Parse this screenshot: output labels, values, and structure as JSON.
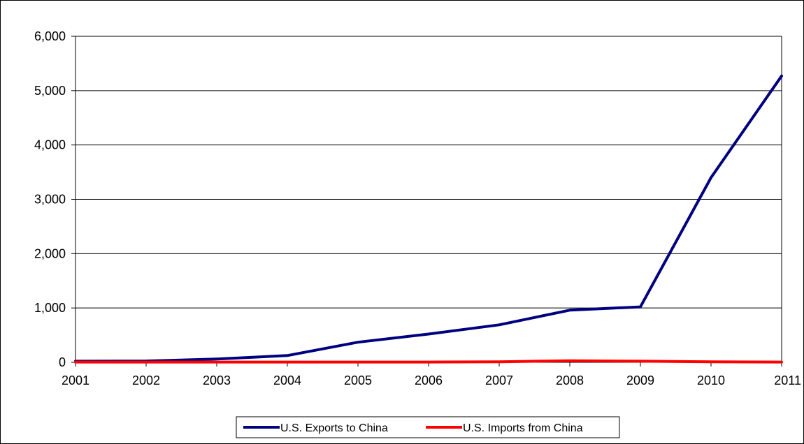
{
  "chart_data": {
    "type": "line",
    "title": "",
    "xlabel": "",
    "ylabel": "",
    "x": [
      "2001",
      "2002",
      "2003",
      "2004",
      "2005",
      "2006",
      "2007",
      "2008",
      "2009",
      "2010",
      "2011"
    ],
    "ylim": [
      0,
      6000
    ],
    "yticks": [
      0,
      1000,
      2000,
      3000,
      4000,
      5000,
      6000
    ],
    "ytick_labels": [
      "0",
      "1,000",
      "2,000",
      "3,000",
      "4,000",
      "5,000",
      "6,000"
    ],
    "grid": "horizontal",
    "legend_position": "bottom",
    "series": [
      {
        "name": "U.S. Exports to China",
        "color": "#000080",
        "values": [
          20,
          25,
          60,
          125,
          370,
          520,
          690,
          960,
          1020,
          3400,
          5270
        ]
      },
      {
        "name": "U.S. Imports from China",
        "color": "#ff0000",
        "values": [
          5,
          5,
          5,
          5,
          5,
          5,
          10,
          30,
          20,
          10,
          5
        ]
      }
    ]
  }
}
